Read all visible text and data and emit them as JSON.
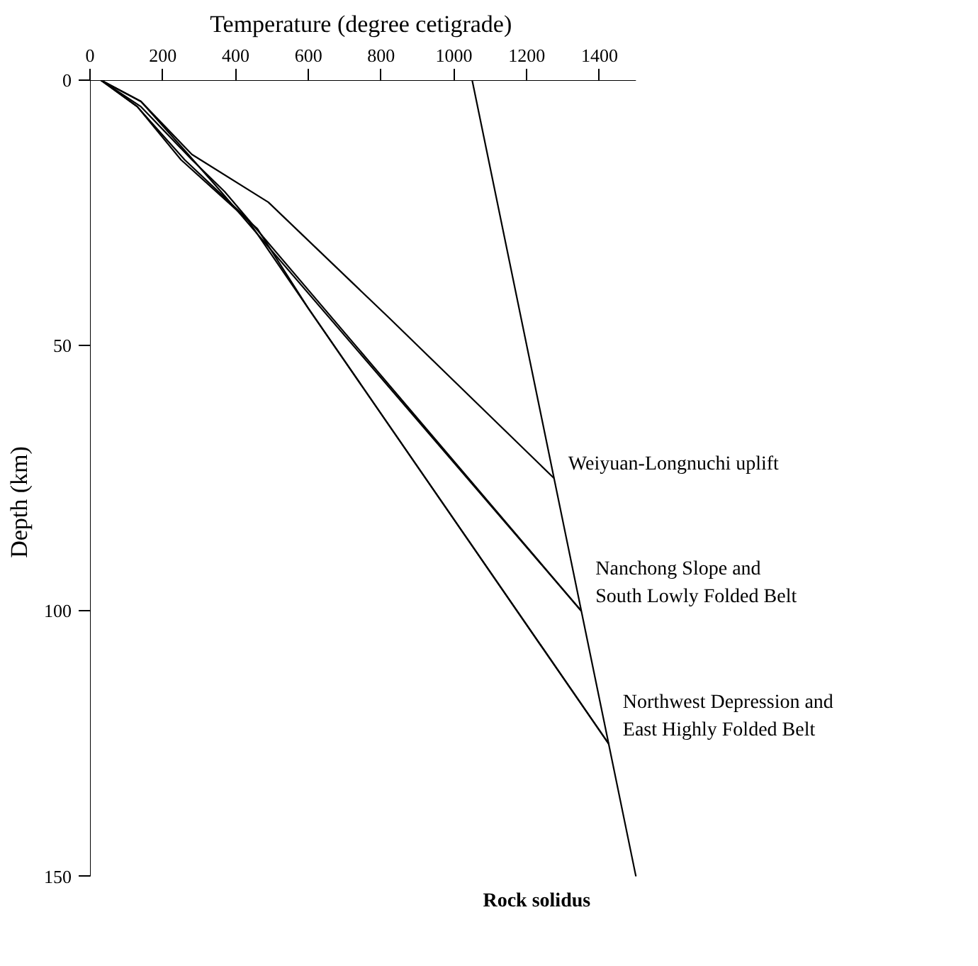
{
  "chart_data": {
    "type": "line",
    "xlabel": "Temperature (degree cetigrade)",
    "ylabel": "Depth (km)",
    "xlim": [
      0,
      1500
    ],
    "ylim": [
      150,
      0
    ],
    "xticks": [
      0,
      200,
      400,
      600,
      800,
      1000,
      1200,
      1400
    ],
    "yticks": [
      0,
      50,
      100,
      150
    ],
    "grid": false,
    "marker": "none",
    "line_style": "solid",
    "series": [
      {
        "color": "#000000",
        "x": [
          1050,
          1500
        ],
        "values": [
          0,
          150
        ]
      },
      {
        "color": "#000000",
        "x": [
          30,
          140,
          280,
          490,
          825,
          1275
        ],
        "values": [
          0,
          4,
          14,
          23,
          45,
          75
        ]
      },
      {
        "color": "#000000",
        "x": [
          30,
          140,
          270,
          360,
          1350
        ],
        "values": [
          0,
          4,
          14,
          21,
          100
        ]
      },
      {
        "color": "#000000",
        "x": [
          30,
          140,
          280,
          370,
          1350
        ],
        "values": [
          0,
          5,
          15,
          21,
          100
        ]
      },
      {
        "color": "#000000",
        "x": [
          30,
          130,
          260,
          430,
          590,
          1425
        ],
        "values": [
          0,
          5,
          15,
          26,
          42,
          125
        ]
      },
      {
        "color": "#000000",
        "x": [
          30,
          130,
          250,
          460,
          600,
          1425
        ],
        "values": [
          0,
          5,
          15,
          28,
          43,
          125
        ]
      }
    ],
    "annotations": [
      {
        "text": "Weiyuan-Longnuchi uplift",
        "x": 1275,
        "y": 75
      },
      {
        "text": "Nanchong Slope and\nSouth Lowly Folded Belt",
        "x": 1350,
        "y": 100
      },
      {
        "text": "Northwest Depression and\nEast Highly Folded Belt",
        "x": 1425,
        "y": 125
      },
      {
        "text": "Rock solidus",
        "x": 1500,
        "y": 150
      }
    ]
  }
}
